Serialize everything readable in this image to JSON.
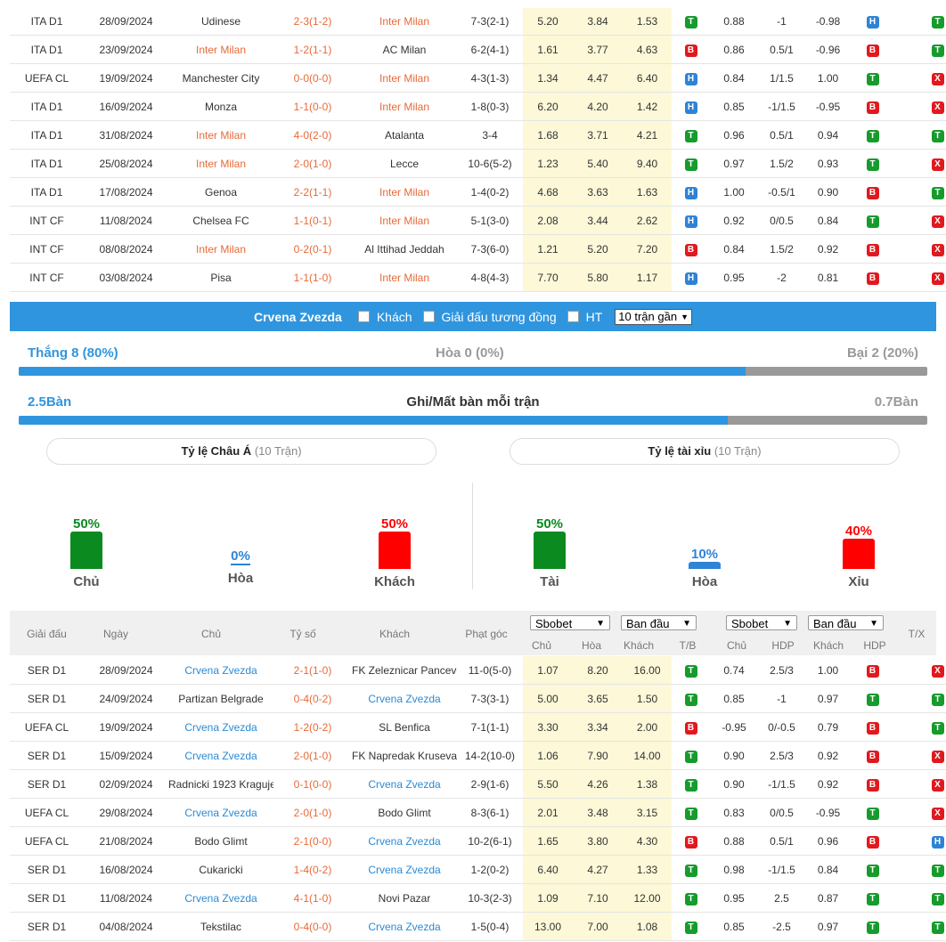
{
  "table1": {
    "rows": [
      {
        "league": "ITA D1",
        "date": "28/09/2024",
        "home": "Udinese",
        "score": "2-3(1-2)",
        "away": "Inter Milan",
        "corner": "7-3(2-1)",
        "o1": "5.20",
        "o2": "3.84",
        "o3": "1.53",
        "tb": "T",
        "h1": "0.88",
        "hdp": "-1",
        "h2": "-0.98",
        "hdpr": "H",
        "tx": "T",
        "hl": "away"
      },
      {
        "league": "ITA D1",
        "date": "23/09/2024",
        "home": "Inter Milan",
        "score": "1-2(1-1)",
        "away": "AC Milan",
        "corner": "6-2(4-1)",
        "o1": "1.61",
        "o2": "3.77",
        "o3": "4.63",
        "tb": "B",
        "h1": "0.86",
        "hdp": "0.5/1",
        "h2": "-0.96",
        "hdpr": "B",
        "tx": "T",
        "hl": "home"
      },
      {
        "league": "UEFA CL",
        "date": "19/09/2024",
        "home": "Manchester City",
        "score": "0-0(0-0)",
        "away": "Inter Milan",
        "corner": "4-3(1-3)",
        "o1": "1.34",
        "o2": "4.47",
        "o3": "6.40",
        "tb": "H",
        "h1": "0.84",
        "hdp": "1/1.5",
        "h2": "1.00",
        "hdpr": "T",
        "tx": "X",
        "hl": "away"
      },
      {
        "league": "ITA D1",
        "date": "16/09/2024",
        "home": "Monza",
        "score": "1-1(0-0)",
        "away": "Inter Milan",
        "corner": "1-8(0-3)",
        "o1": "6.20",
        "o2": "4.20",
        "o3": "1.42",
        "tb": "H",
        "h1": "0.85",
        "hdp": "-1/1.5",
        "h2": "-0.95",
        "hdpr": "B",
        "tx": "X",
        "hl": "away"
      },
      {
        "league": "ITA D1",
        "date": "31/08/2024",
        "home": "Inter Milan",
        "score": "4-0(2-0)",
        "away": "Atalanta",
        "corner": "3-4",
        "o1": "1.68",
        "o2": "3.71",
        "o3": "4.21",
        "tb": "T",
        "h1": "0.96",
        "hdp": "0.5/1",
        "h2": "0.94",
        "hdpr": "T",
        "tx": "T",
        "hl": "home"
      },
      {
        "league": "ITA D1",
        "date": "25/08/2024",
        "home": "Inter Milan",
        "score": "2-0(1-0)",
        "away": "Lecce",
        "corner": "10-6(5-2)",
        "o1": "1.23",
        "o2": "5.40",
        "o3": "9.40",
        "tb": "T",
        "h1": "0.97",
        "hdp": "1.5/2",
        "h2": "0.93",
        "hdpr": "T",
        "tx": "X",
        "hl": "home"
      },
      {
        "league": "ITA D1",
        "date": "17/08/2024",
        "home": "Genoa",
        "score": "2-2(1-1)",
        "away": "Inter Milan",
        "corner": "1-4(0-2)",
        "o1": "4.68",
        "o2": "3.63",
        "o3": "1.63",
        "tb": "H",
        "h1": "1.00",
        "hdp": "-0.5/1",
        "h2": "0.90",
        "hdpr": "B",
        "tx": "T",
        "hl": "away"
      },
      {
        "league": "INT CF",
        "date": "11/08/2024",
        "home": "Chelsea FC",
        "score": "1-1(0-1)",
        "away": "Inter Milan",
        "corner": "5-1(3-0)",
        "o1": "2.08",
        "o2": "3.44",
        "o3": "2.62",
        "tb": "H",
        "h1": "0.92",
        "hdp": "0/0.5",
        "h2": "0.84",
        "hdpr": "T",
        "tx": "X",
        "hl": "away"
      },
      {
        "league": "INT CF",
        "date": "08/08/2024",
        "home": "Inter Milan",
        "score": "0-2(0-1)",
        "away": "Al Ittihad Jeddah",
        "corner": "7-3(6-0)",
        "o1": "1.21",
        "o2": "5.20",
        "o3": "7.20",
        "tb": "B",
        "h1": "0.84",
        "hdp": "1.5/2",
        "h2": "0.92",
        "hdpr": "B",
        "tx": "X",
        "hl": "home"
      },
      {
        "league": "INT CF",
        "date": "03/08/2024",
        "home": "Pisa",
        "score": "1-1(1-0)",
        "away": "Inter Milan",
        "corner": "4-8(4-3)",
        "o1": "7.70",
        "o2": "5.80",
        "o3": "1.17",
        "tb": "H",
        "h1": "0.95",
        "hdp": "-2",
        "h2": "0.81",
        "hdpr": "B",
        "tx": "X",
        "hl": "away"
      }
    ]
  },
  "filter": {
    "team": "Crvena Zvezda",
    "away_label": "Khách",
    "same_league_label": "Giải đấu tương đồng",
    "ht_label": "HT",
    "select_value": "10 trận gần"
  },
  "summary": {
    "win": "Thắng 8 (80%)",
    "draw": "Hòa 0 (0%)",
    "loss": "Bại 2 (20%)",
    "win_fraction": 0.8,
    "goals_for": "2.5Bàn",
    "goals_label": "Ghi/Mất bàn mỗi trận",
    "goals_against": "0.7Bàn",
    "goals_fraction": 0.78
  },
  "asian": {
    "title": "Tỷ lệ Châu Á",
    "sub": "(10 Trận)",
    "items": [
      {
        "pct": "50%",
        "label": "Chủ",
        "value": 50,
        "color": "#0a8a1f"
      },
      {
        "pct": "0%",
        "label": "Hòa",
        "value": 0,
        "color": "#2f83d6"
      },
      {
        "pct": "50%",
        "label": "Khách",
        "value": 50,
        "color": "#ff0000"
      }
    ]
  },
  "overunder": {
    "title": "Tỷ lệ tài xỉu",
    "sub": "(10 Trận)",
    "items": [
      {
        "pct": "50%",
        "label": "Tài",
        "value": 50,
        "color": "#0a8a1f"
      },
      {
        "pct": "10%",
        "label": "Hòa",
        "value": 10,
        "color": "#2f83d6"
      },
      {
        "pct": "40%",
        "label": "Xỉu",
        "value": 40,
        "color": "#ff0000"
      }
    ]
  },
  "table2": {
    "headers": {
      "league": "Giải đấu",
      "date": "Ngày",
      "home": "Chủ",
      "score": "Tỷ số",
      "away": "Khách",
      "corner": "Phạt góc",
      "sel1": "Sbobet",
      "sel2": "Ban đầu",
      "sel3": "Sbobet",
      "sel4": "Ban đầu",
      "h_home": "Chủ",
      "h_draw": "Hòa",
      "h_away": "Khách",
      "h_tb": "T/B",
      "h2_home": "Chủ",
      "h2_hdp": "HDP",
      "h2_away": "Khách",
      "h2_hdpr": "HDP",
      "tx": "T/X"
    },
    "rows": [
      {
        "league": "SER D1",
        "date": "28/09/2024",
        "home": "Crvena Zvezda",
        "score": "2-1(1-0)",
        "away": "FK Zeleznicar Pancevo",
        "corner": "11-0(5-0)",
        "o1": "1.07",
        "o2": "8.20",
        "o3": "16.00",
        "tb": "T",
        "h1": "0.74",
        "hdp": "2.5/3",
        "h2": "1.00",
        "hdpr": "B",
        "tx": "X",
        "hl": "home"
      },
      {
        "league": "SER D1",
        "date": "24/09/2024",
        "home": "Partizan Belgrade",
        "score": "0-4(0-2)",
        "away": "Crvena Zvezda",
        "corner": "7-3(3-1)",
        "o1": "5.00",
        "o2": "3.65",
        "o3": "1.50",
        "tb": "T",
        "h1": "0.85",
        "hdp": "-1",
        "h2": "0.97",
        "hdpr": "T",
        "tx": "T",
        "hl": "away"
      },
      {
        "league": "UEFA CL",
        "date": "19/09/2024",
        "home": "Crvena Zvezda",
        "score": "1-2(0-2)",
        "away": "SL Benfica",
        "corner": "7-1(1-1)",
        "o1": "3.30",
        "o2": "3.34",
        "o3": "2.00",
        "tb": "B",
        "h1": "-0.95",
        "hdp": "0/-0.5",
        "h2": "0.79",
        "hdpr": "B",
        "tx": "T",
        "hl": "home"
      },
      {
        "league": "SER D1",
        "date": "15/09/2024",
        "home": "Crvena Zvezda",
        "score": "2-0(1-0)",
        "away": "FK Napredak Krusevac",
        "corner": "14-2(10-0)",
        "o1": "1.06",
        "o2": "7.90",
        "o3": "14.00",
        "tb": "T",
        "h1": "0.90",
        "hdp": "2.5/3",
        "h2": "0.92",
        "hdpr": "B",
        "tx": "X",
        "hl": "home"
      },
      {
        "league": "SER D1",
        "date": "02/09/2024",
        "home": "Radnicki 1923 Kragujevac",
        "score": "0-1(0-0)",
        "away": "Crvena Zvezda",
        "corner": "2-9(1-6)",
        "o1": "5.50",
        "o2": "4.26",
        "o3": "1.38",
        "tb": "T",
        "h1": "0.90",
        "hdp": "-1/1.5",
        "h2": "0.92",
        "hdpr": "B",
        "tx": "X",
        "hl": "away"
      },
      {
        "league": "UEFA CL",
        "date": "29/08/2024",
        "home": "Crvena Zvezda",
        "score": "2-0(1-0)",
        "away": "Bodo Glimt",
        "corner": "8-3(6-1)",
        "o1": "2.01",
        "o2": "3.48",
        "o3": "3.15",
        "tb": "T",
        "h1": "0.83",
        "hdp": "0/0.5",
        "h2": "-0.95",
        "hdpr": "T",
        "tx": "X",
        "hl": "home"
      },
      {
        "league": "UEFA CL",
        "date": "21/08/2024",
        "home": "Bodo Glimt",
        "score": "2-1(0-0)",
        "away": "Crvena Zvezda",
        "corner": "10-2(6-1)",
        "o1": "1.65",
        "o2": "3.80",
        "o3": "4.30",
        "tb": "B",
        "h1": "0.88",
        "hdp": "0.5/1",
        "h2": "0.96",
        "hdpr": "B",
        "tx": "H",
        "hl": "away"
      },
      {
        "league": "SER D1",
        "date": "16/08/2024",
        "home": "Cukaricki",
        "score": "1-4(0-2)",
        "away": "Crvena Zvezda",
        "corner": "1-2(0-2)",
        "o1": "6.40",
        "o2": "4.27",
        "o3": "1.33",
        "tb": "T",
        "h1": "0.98",
        "hdp": "-1/1.5",
        "h2": "0.84",
        "hdpr": "T",
        "tx": "T",
        "hl": "away"
      },
      {
        "league": "SER D1",
        "date": "11/08/2024",
        "home": "Crvena Zvezda",
        "score": "4-1(1-0)",
        "away": "Novi Pazar",
        "corner": "10-3(2-3)",
        "o1": "1.09",
        "o2": "7.10",
        "o3": "12.00",
        "tb": "T",
        "h1": "0.95",
        "hdp": "2.5",
        "h2": "0.87",
        "hdpr": "T",
        "tx": "T",
        "hl": "home"
      },
      {
        "league": "SER D1",
        "date": "04/08/2024",
        "home": "Tekstilac",
        "score": "0-4(0-0)",
        "away": "Crvena Zvezda",
        "corner": "1-5(0-4)",
        "o1": "13.00",
        "o2": "7.00",
        "o3": "1.08",
        "tb": "T",
        "h1": "0.85",
        "hdp": "-2.5",
        "h2": "0.97",
        "hdpr": "T",
        "tx": "T",
        "hl": "away"
      }
    ]
  }
}
